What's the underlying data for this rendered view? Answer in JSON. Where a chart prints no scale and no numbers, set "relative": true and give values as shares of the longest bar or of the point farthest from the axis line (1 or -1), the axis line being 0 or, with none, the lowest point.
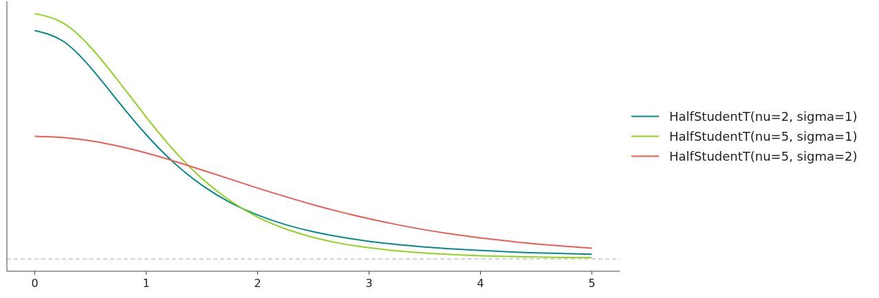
{
  "chart_data": {
    "type": "line",
    "relative": true,
    "x": [
      0,
      0.25,
      0.5,
      0.75,
      1,
      1.25,
      1.5,
      1.75,
      2,
      2.25,
      2.5,
      2.75,
      3,
      3.25,
      3.5,
      3.75,
      4,
      4.25,
      4.5,
      4.75,
      5
    ],
    "xlim": [
      -0.25,
      5.25
    ],
    "xticks": [
      0,
      1,
      2,
      3,
      4,
      5
    ],
    "series": [
      {
        "name": "HalfStudentT(nu=2, sigma=1)",
        "color": "#008b8b",
        "values": [
          0.931,
          0.889,
          0.781,
          0.642,
          0.507,
          0.392,
          0.301,
          0.231,
          0.179,
          0.14,
          0.111,
          0.089,
          0.072,
          0.059,
          0.049,
          0.041,
          0.035,
          0.029,
          0.025,
          0.022,
          0.019
        ]
      },
      {
        "name": "HalfStudentT(nu=5, sigma=1)",
        "color": "#8fd31a",
        "values": [
          1.0,
          0.963,
          0.864,
          0.726,
          0.579,
          0.442,
          0.328,
          0.239,
          0.171,
          0.123,
          0.088,
          0.063,
          0.046,
          0.033,
          0.024,
          0.018,
          0.013,
          0.01,
          0.008,
          0.006,
          0.005
        ]
      },
      {
        "name": "HalfStudentT(nu=5, sigma=2)",
        "color": "#f05a55",
        "values": [
          0.5,
          0.495,
          0.482,
          0.46,
          0.432,
          0.399,
          0.363,
          0.326,
          0.289,
          0.254,
          0.221,
          0.191,
          0.164,
          0.14,
          0.119,
          0.101,
          0.086,
          0.073,
          0.061,
          0.052,
          0.044
        ]
      }
    ],
    "ref_lines": [
      {
        "axis": "y",
        "value": 0,
        "color": "#cccccc",
        "line_style": "dashed"
      }
    ],
    "legend": "right",
    "grid": false,
    "line_style": "solid"
  }
}
